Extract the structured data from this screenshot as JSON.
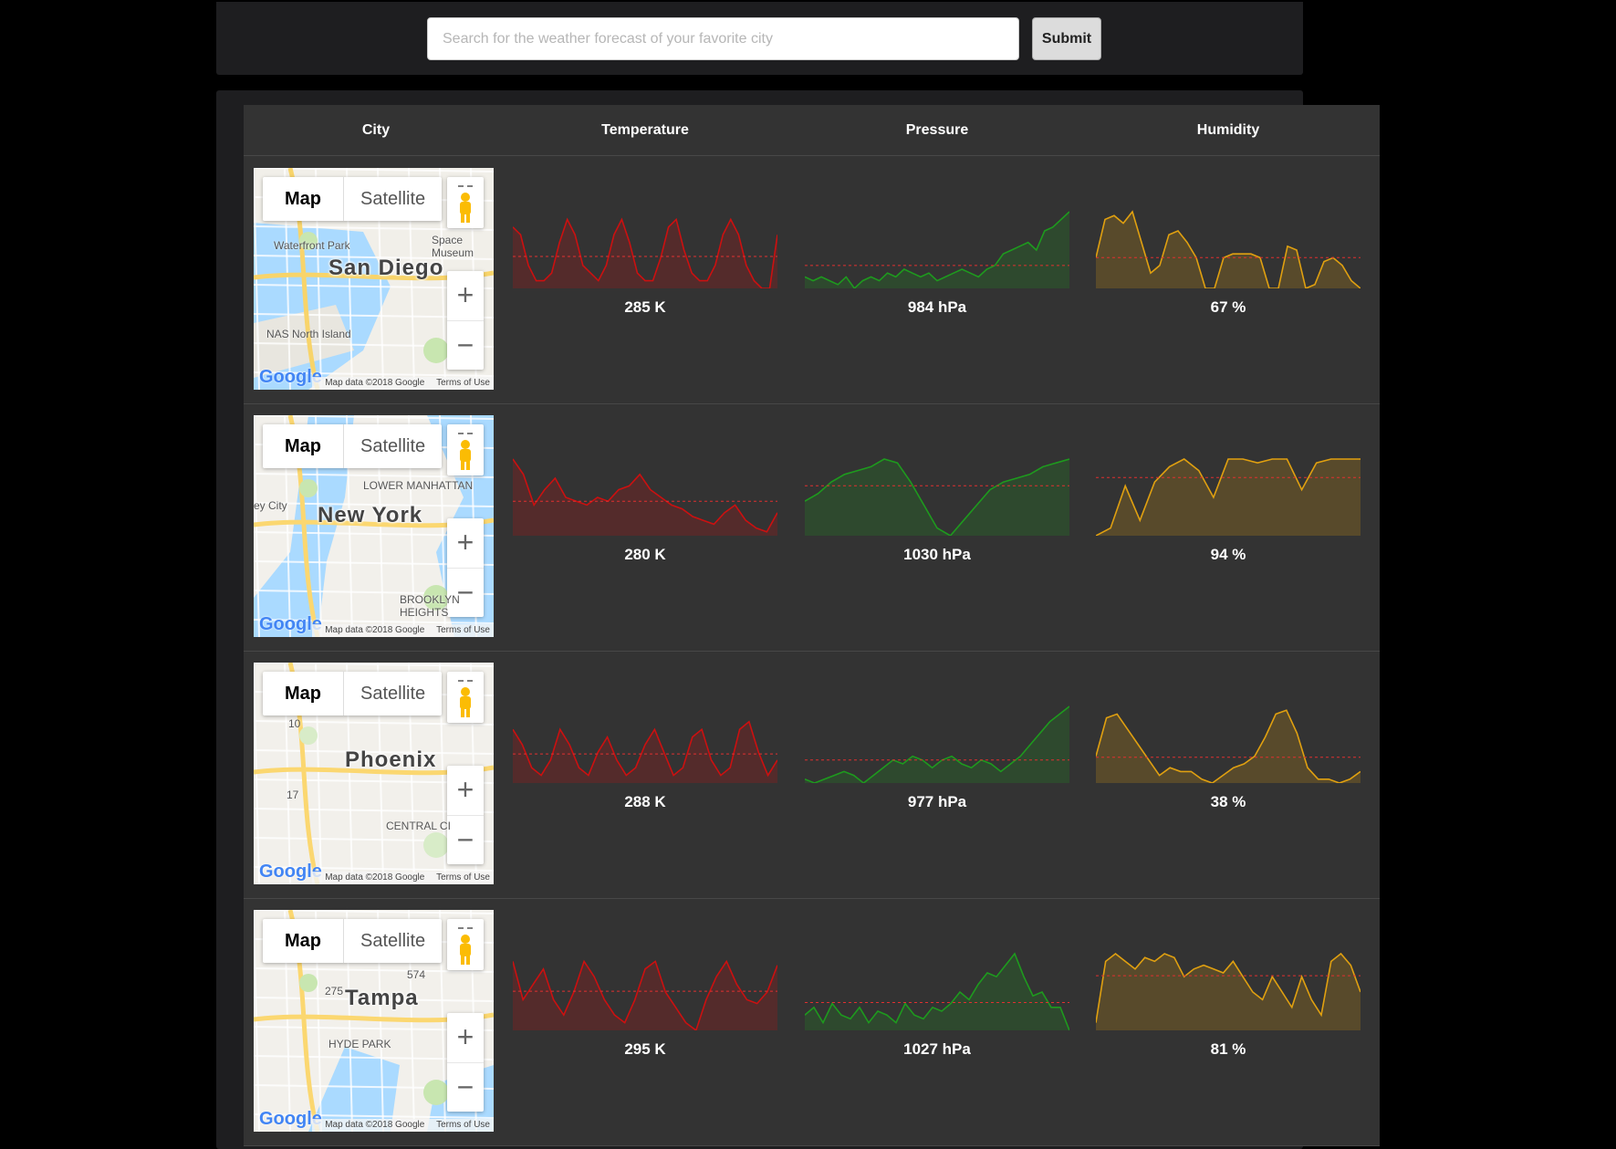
{
  "search": {
    "placeholder": "Search for the weather forecast of your favorite city",
    "submit_label": "Submit"
  },
  "table": {
    "headers": [
      "City",
      "Temperature",
      "Pressure",
      "Humidity"
    ]
  },
  "map_controls": {
    "map_label": "Map",
    "satellite_label": "Satellite",
    "zoom_in": "+",
    "zoom_out": "−",
    "google_logo": "Google",
    "map_data": "Map data ©2018 Google",
    "terms": "Terms of Use"
  },
  "colors": {
    "temperature": "#cc1010",
    "pressure": "#1e9a1e",
    "humidity": "#e0a010"
  },
  "rows": [
    {
      "city": "San Diego",
      "map_labels": [
        "Waterfront Park",
        "NAS North Island",
        "Space Museum"
      ],
      "temperature": "285 K",
      "pressure": "984 hPa",
      "humidity": "67 %",
      "temperature_series": [
        0.8,
        0.7,
        0.3,
        0.1,
        0.1,
        0.2,
        0.6,
        0.9,
        0.7,
        0.3,
        0.2,
        0.1,
        0.3,
        0.7,
        0.9,
        0.6,
        0.2,
        0.1,
        0.1,
        0.4,
        0.8,
        0.9,
        0.5,
        0.2,
        0.1,
        0.1,
        0.3,
        0.7,
        0.9,
        0.7,
        0.3,
        0.1,
        0.0,
        0.0,
        0.7
      ],
      "pressure_series": [
        0.15,
        0.1,
        0.15,
        0.1,
        0.05,
        0.15,
        0.0,
        0.1,
        0.15,
        0.1,
        0.2,
        0.15,
        0.25,
        0.2,
        0.15,
        0.2,
        0.1,
        0.15,
        0.2,
        0.25,
        0.2,
        0.15,
        0.25,
        0.3,
        0.45,
        0.5,
        0.55,
        0.6,
        0.5,
        0.75,
        0.8,
        0.9,
        1.0
      ],
      "humidity_series": [
        0.4,
        0.9,
        0.95,
        0.85,
        1.0,
        0.6,
        0.2,
        0.3,
        0.7,
        0.75,
        0.6,
        0.4,
        0.0,
        0.0,
        0.4,
        0.45,
        0.45,
        0.45,
        0.4,
        0.0,
        0.0,
        0.55,
        0.5,
        0.0,
        0.05,
        0.35,
        0.4,
        0.3,
        0.1,
        0.0
      ]
    },
    {
      "city": "New York",
      "map_labels": [
        "LOWER MANHATTAN",
        "BROOKLYN HEIGHTS",
        "ey City"
      ],
      "temperature": "280 K",
      "pressure": "1030 hPa",
      "humidity": "94 %",
      "temperature_series": [
        1.0,
        0.8,
        0.4,
        0.6,
        0.75,
        0.5,
        0.45,
        0.4,
        0.5,
        0.45,
        0.6,
        0.65,
        0.8,
        0.6,
        0.5,
        0.4,
        0.35,
        0.25,
        0.2,
        0.15,
        0.3,
        0.4,
        0.2,
        0.1,
        0.05,
        0.3
      ],
      "pressure_series": [
        0.45,
        0.55,
        0.7,
        0.8,
        0.85,
        0.9,
        1.0,
        0.95,
        0.7,
        0.4,
        0.1,
        0.0,
        0.2,
        0.4,
        0.6,
        0.7,
        0.75,
        0.8,
        0.9,
        0.95,
        1.0
      ],
      "humidity_series": [
        0.0,
        0.1,
        0.65,
        0.2,
        0.7,
        0.9,
        1.0,
        0.85,
        0.5,
        1.0,
        1.0,
        0.95,
        1.0,
        1.0,
        0.6,
        0.95,
        1.0,
        1.0,
        1.0
      ]
    },
    {
      "city": "Phoenix",
      "map_labels": [
        "CENTRAL CI",
        "10",
        "17"
      ],
      "temperature": "288 K",
      "pressure": "977 hPa",
      "humidity": "38 %",
      "temperature_series": [
        0.7,
        0.5,
        0.2,
        0.1,
        0.3,
        0.7,
        0.5,
        0.2,
        0.1,
        0.4,
        0.6,
        0.3,
        0.1,
        0.2,
        0.5,
        0.7,
        0.4,
        0.1,
        0.2,
        0.6,
        0.7,
        0.3,
        0.1,
        0.2,
        0.7,
        0.8,
        0.4,
        0.1,
        0.3
      ],
      "pressure_series": [
        0.05,
        0.0,
        0.05,
        0.1,
        0.15,
        0.1,
        0.0,
        0.1,
        0.2,
        0.3,
        0.25,
        0.35,
        0.3,
        0.2,
        0.3,
        0.35,
        0.25,
        0.2,
        0.3,
        0.25,
        0.15,
        0.25,
        0.35,
        0.5,
        0.65,
        0.8,
        0.9,
        1.0
      ],
      "humidity_series": [
        0.35,
        0.85,
        0.9,
        0.7,
        0.5,
        0.3,
        0.1,
        0.2,
        0.15,
        0.15,
        0.05,
        0.0,
        0.1,
        0.2,
        0.25,
        0.35,
        0.6,
        0.9,
        0.95,
        0.65,
        0.2,
        0.05,
        0.05,
        0.0,
        0.05,
        0.15
      ]
    },
    {
      "city": "Tampa",
      "map_labels": [
        "HYDE PARK",
        "275",
        "574"
      ],
      "temperature": "295 K",
      "pressure": "1027 hPa",
      "humidity": "81 %",
      "temperature_series": [
        0.9,
        0.4,
        0.6,
        0.8,
        0.4,
        0.2,
        0.5,
        0.9,
        0.7,
        0.4,
        0.2,
        0.1,
        0.4,
        0.8,
        0.9,
        0.5,
        0.3,
        0.1,
        0.0,
        0.4,
        0.7,
        0.9,
        0.6,
        0.4,
        0.35,
        0.5,
        0.85
      ],
      "pressure_series": [
        0.2,
        0.3,
        0.1,
        0.35,
        0.2,
        0.15,
        0.3,
        0.1,
        0.25,
        0.2,
        0.1,
        0.35,
        0.2,
        0.15,
        0.3,
        0.25,
        0.35,
        0.5,
        0.4,
        0.6,
        0.75,
        0.7,
        0.85,
        1.0,
        0.7,
        0.45,
        0.5,
        0.3,
        0.3,
        0.0
      ],
      "humidity_series": [
        0.1,
        0.9,
        1.0,
        0.9,
        0.8,
        0.95,
        0.9,
        1.0,
        0.95,
        0.7,
        0.8,
        0.85,
        0.8,
        0.75,
        0.9,
        0.7,
        0.5,
        0.4,
        0.7,
        0.5,
        0.3,
        0.7,
        0.4,
        0.2,
        0.9,
        1.0,
        0.85,
        0.5
      ]
    }
  ]
}
